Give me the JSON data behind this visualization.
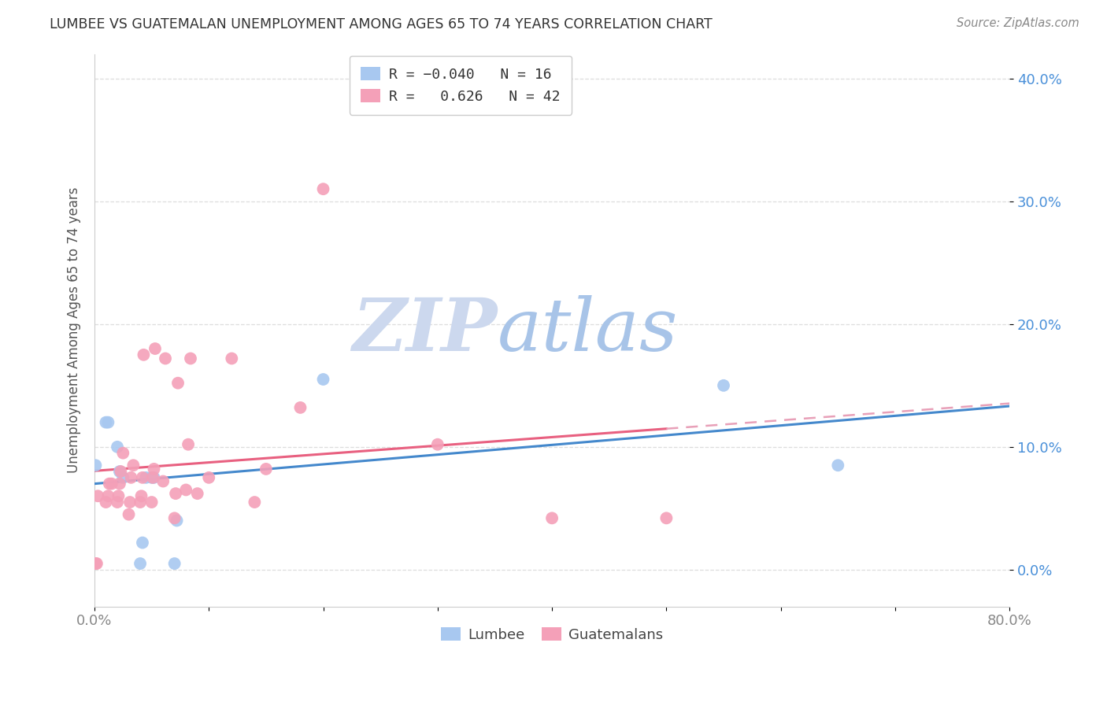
{
  "title": "LUMBEE VS GUATEMALAN UNEMPLOYMENT AMONG AGES 65 TO 74 YEARS CORRELATION CHART",
  "source": "Source: ZipAtlas.com",
  "ylabel": "Unemployment Among Ages 65 to 74 years",
  "xlabel_lumbee": "Lumbee",
  "xlabel_guatemalan": "Guatemalans",
  "xmin": 0.0,
  "xmax": 0.8,
  "ymin": -0.03,
  "ymax": 0.42,
  "yticks": [
    0.0,
    0.1,
    0.2,
    0.3,
    0.4
  ],
  "ytick_labels": [
    "0.0%",
    "10.0%",
    "20.0%",
    "30.0%",
    "40.0%"
  ],
  "xticks": [
    0.0,
    0.1,
    0.2,
    0.3,
    0.4,
    0.5,
    0.6,
    0.7,
    0.8
  ],
  "xtick_labels": [
    "0.0%",
    "",
    "",
    "",
    "",
    "",
    "",
    "",
    "80.0%"
  ],
  "lumbee_color": "#a8c8f0",
  "guatemalan_color": "#f4a0b8",
  "trend_lumbee_color": "#4488cc",
  "trend_guatemalan_color": "#e86080",
  "trend_guatemalan_dash_color": "#e8a0b8",
  "R_lumbee": -0.04,
  "N_lumbee": 16,
  "R_guatemalan": 0.626,
  "N_guatemalan": 42,
  "lumbee_x": [
    0.001,
    0.01,
    0.012,
    0.02,
    0.022,
    0.025,
    0.04,
    0.042,
    0.045,
    0.05,
    0.052,
    0.07,
    0.072,
    0.2,
    0.55,
    0.65
  ],
  "lumbee_y": [
    0.085,
    0.12,
    0.12,
    0.1,
    0.08,
    0.075,
    0.005,
    0.022,
    0.075,
    0.075,
    0.075,
    0.005,
    0.04,
    0.155,
    0.15,
    0.085
  ],
  "guatemalan_x": [
    0.001,
    0.002,
    0.003,
    0.01,
    0.012,
    0.013,
    0.015,
    0.02,
    0.021,
    0.022,
    0.023,
    0.025,
    0.03,
    0.031,
    0.032,
    0.034,
    0.04,
    0.041,
    0.042,
    0.043,
    0.05,
    0.051,
    0.052,
    0.053,
    0.06,
    0.062,
    0.07,
    0.071,
    0.073,
    0.08,
    0.082,
    0.084,
    0.09,
    0.1,
    0.12,
    0.14,
    0.15,
    0.18,
    0.2,
    0.3,
    0.4,
    0.5
  ],
  "guatemalan_y": [
    0.005,
    0.005,
    0.06,
    0.055,
    0.06,
    0.07,
    0.07,
    0.055,
    0.06,
    0.07,
    0.08,
    0.095,
    0.045,
    0.055,
    0.075,
    0.085,
    0.055,
    0.06,
    0.075,
    0.175,
    0.055,
    0.075,
    0.082,
    0.18,
    0.072,
    0.172,
    0.042,
    0.062,
    0.152,
    0.065,
    0.102,
    0.172,
    0.062,
    0.075,
    0.172,
    0.055,
    0.082,
    0.132,
    0.31,
    0.102,
    0.042,
    0.042
  ],
  "watermark_line1": "ZIP",
  "watermark_line2": "atlas",
  "watermark_color": "#ccd8ee",
  "background_color": "#ffffff",
  "grid_color": "#dddddd",
  "axis_label_color": "#4a90d9",
  "title_color": "#555555",
  "source_color": "#888888"
}
